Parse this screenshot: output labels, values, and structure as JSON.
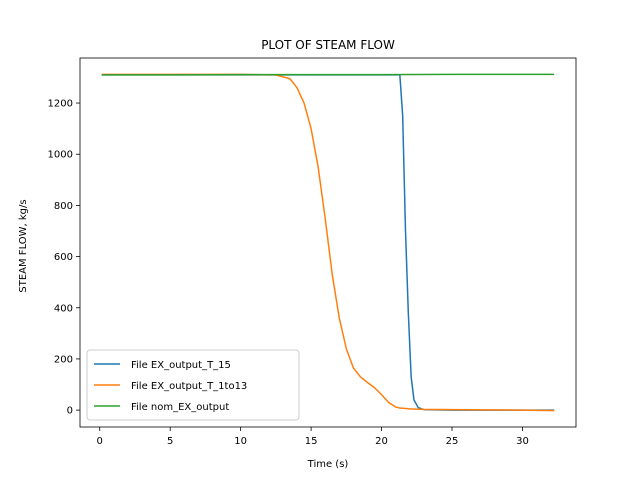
{
  "chart_data": {
    "type": "line",
    "title": "PLOT OF STEAM FLOW",
    "xlabel": "Time (s)",
    "ylabel": "STEAM FLOW, kg/s",
    "xlim": [
      -1.4,
      33.8
    ],
    "ylim": [
      -66,
      1376
    ],
    "xticks": [
      0,
      5,
      10,
      15,
      20,
      25,
      30
    ],
    "yticks": [
      0,
      200,
      400,
      600,
      800,
      1000,
      1200
    ],
    "grid": false,
    "legend_position": "lower-left",
    "series": [
      {
        "name": "File EX_output_T_15",
        "color": "#1f77b4",
        "x": [
          0.2,
          5,
          10,
          15,
          20,
          21.3,
          21.5,
          21.7,
          21.9,
          22.1,
          22.3,
          22.6,
          23,
          25,
          30,
          32.2
        ],
        "y": [
          1310,
          1310,
          1310,
          1310,
          1310,
          1310,
          1150,
          700,
          380,
          130,
          40,
          10,
          2,
          0,
          0,
          0
        ]
      },
      {
        "name": "File EX_output_T_1to13",
        "color": "#ff7f0e",
        "x": [
          0.2,
          5,
          10,
          12.5,
          13.5,
          14,
          14.5,
          15,
          15.5,
          16,
          16.5,
          17,
          17.5,
          18,
          18.5,
          19,
          19.5,
          20,
          20.5,
          21,
          21.3,
          22,
          23,
          25,
          30,
          32.2
        ],
        "y": [
          1312,
          1312,
          1312,
          1310,
          1295,
          1260,
          1200,
          1100,
          950,
          750,
          530,
          360,
          240,
          165,
          130,
          108,
          88,
          60,
          30,
          12,
          8,
          5,
          3,
          2,
          0,
          -2
        ],
        "markers": false
      },
      {
        "name": "File nom_EX_output",
        "color": "#2ca02c",
        "x": [
          0.2,
          5,
          10,
          15,
          20,
          25,
          30,
          32.2
        ],
        "y": [
          1310,
          1310,
          1311,
          1311,
          1311,
          1312,
          1312,
          1312
        ]
      }
    ]
  }
}
